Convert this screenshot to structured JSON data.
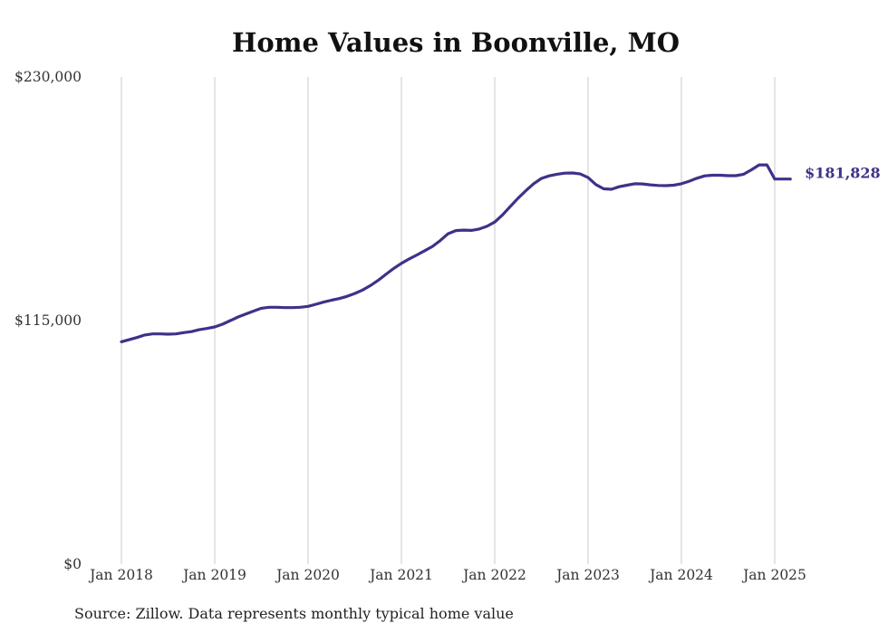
{
  "chart_data": {
    "type": "line",
    "title": "Home Values in Boonville, MO",
    "xlabel": "",
    "ylabel": "",
    "y_ticks": [
      "$0",
      "$115,000",
      "$230,000"
    ],
    "y_tick_values": [
      0,
      115000,
      230000
    ],
    "ylim": [
      0,
      230000
    ],
    "x_ticks": [
      "Jan 2018",
      "Jan 2019",
      "Jan 2020",
      "Jan 2021",
      "Jan 2022",
      "Jan 2023",
      "Jan 2024",
      "Jan 2025"
    ],
    "x_tick_values": [
      "2018-01",
      "2019-01",
      "2020-01",
      "2021-01",
      "2022-01",
      "2023-01",
      "2024-01",
      "2025-01"
    ],
    "grid": "vertical",
    "legend": "none",
    "line_color": "#3d3289",
    "end_label": "$181,828",
    "series": [
      {
        "x": [
          "2018-01",
          "2018-02",
          "2018-03",
          "2018-04",
          "2018-05",
          "2018-06",
          "2018-07",
          "2018-08",
          "2018-09",
          "2018-10",
          "2018-11",
          "2018-12",
          "2019-01",
          "2019-02",
          "2019-03",
          "2019-04",
          "2019-05",
          "2019-06",
          "2019-07",
          "2019-08",
          "2019-09",
          "2019-10",
          "2019-11",
          "2019-12",
          "2020-01",
          "2020-02",
          "2020-03",
          "2020-04",
          "2020-05",
          "2020-06",
          "2020-07",
          "2020-08",
          "2020-09",
          "2020-10",
          "2020-11",
          "2020-12",
          "2021-01",
          "2021-02",
          "2021-03",
          "2021-04",
          "2021-05",
          "2021-06",
          "2021-07",
          "2021-08",
          "2021-09",
          "2021-10",
          "2021-11",
          "2021-12",
          "2022-01",
          "2022-02",
          "2022-03",
          "2022-04",
          "2022-05",
          "2022-06",
          "2022-07",
          "2022-08",
          "2022-09",
          "2022-10",
          "2022-11",
          "2022-12",
          "2023-01",
          "2023-02",
          "2023-03",
          "2023-04",
          "2023-05",
          "2023-06",
          "2023-07",
          "2023-08",
          "2023-09",
          "2023-10",
          "2023-11",
          "2023-12",
          "2024-01",
          "2024-02",
          "2024-03",
          "2024-04",
          "2024-05",
          "2024-06",
          "2024-07",
          "2024-08",
          "2024-09",
          "2024-10",
          "2024-11",
          "2024-12",
          "2025-01",
          "2025-02",
          "2025-03"
        ],
        "values": [
          105000,
          106000,
          107000,
          108200,
          108700,
          108700,
          108600,
          108700,
          109300,
          109800,
          110700,
          111300,
          112000,
          113300,
          115000,
          116700,
          118100,
          119500,
          120800,
          121300,
          121300,
          121100,
          121100,
          121300,
          121700,
          122700,
          123700,
          124600,
          125400,
          126400,
          127800,
          129400,
          131500,
          134000,
          136800,
          139600,
          142000,
          144100,
          146000,
          148000,
          150000,
          152800,
          156000,
          157500,
          157700,
          157600,
          158200,
          159500,
          161500,
          164900,
          168900,
          172800,
          176300,
          179600,
          182100,
          183300,
          184100,
          184600,
          184700,
          184200,
          182500,
          179200,
          177200,
          177000,
          178200,
          178900,
          179600,
          179500,
          179100,
          178800,
          178700,
          178900,
          179600,
          180800,
          182200,
          183300,
          183600,
          183600,
          183400,
          183400,
          184100,
          186200,
          188500,
          188500,
          181828,
          181828,
          181828
        ]
      }
    ]
  },
  "source": "Source: Zillow. Data represents monthly typical home value"
}
